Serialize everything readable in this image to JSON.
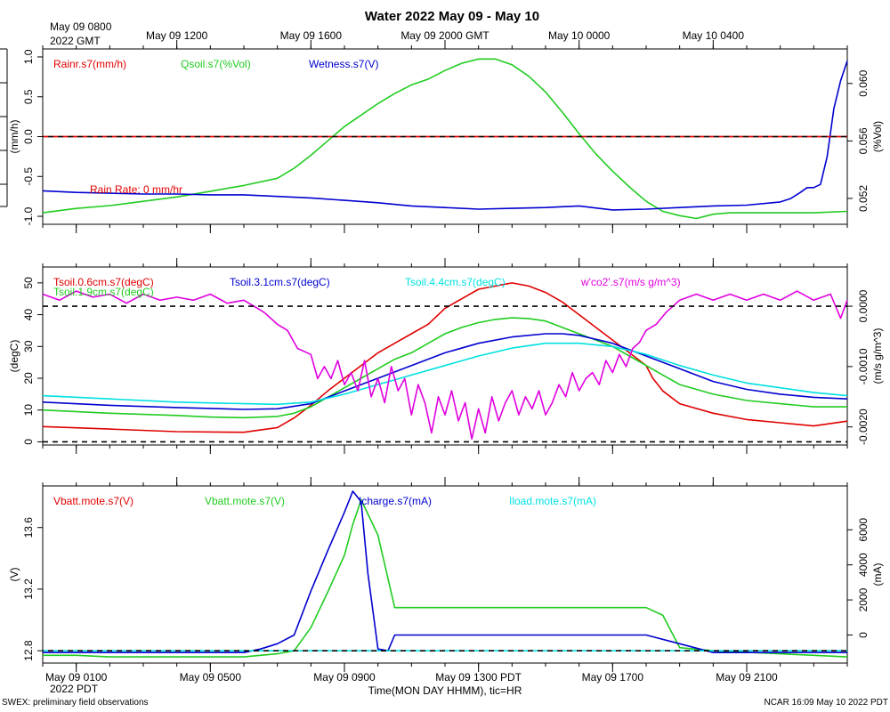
{
  "title": "Water 2022 May 09 - May 10",
  "x_range_hours": [
    0,
    24
  ],
  "top_axis": {
    "corner": [
      "May 09 0800",
      "2022 GMT"
    ],
    "ticks": [
      {
        "h": 4,
        "label": "May 09 1200"
      },
      {
        "h": 8,
        "label": "May 09 1600"
      },
      {
        "h": 12,
        "label": "May 09 2000 GMT"
      },
      {
        "h": 16,
        "label": "May 10 0000"
      },
      {
        "h": 20,
        "label": "May 10 0400"
      }
    ]
  },
  "bottom_axis": {
    "ticks": [
      {
        "h": 1,
        "label": "May 09 0100"
      },
      {
        "h": 5,
        "label": "May 09 0500"
      },
      {
        "h": 9,
        "label": "May 09 0900"
      },
      {
        "h": 13,
        "label": "May 09 1300 PDT"
      },
      {
        "h": 17,
        "label": "May 09 1700"
      },
      {
        "h": 21,
        "label": "May 09 2100"
      }
    ],
    "year_label": "2022 PDT",
    "xlabel": "Time(MON DAY HHMM), tic=HR"
  },
  "footer": {
    "left": "SWEX: preliminary field observations",
    "right": "NCAR 16:09 May 10 2022 PDT"
  },
  "colors": {
    "red": "#e00000",
    "green": "#20cc20",
    "blue": "#0000d0",
    "cyan": "#00e0e0",
    "magenta": "#e000e0"
  },
  "chart_data": [
    {
      "type": "line",
      "panel": "water",
      "ylabel_left": "(mm/h)",
      "ylabel_right": "(%Vol)",
      "ylim_left": [
        -1.1,
        1.1
      ],
      "yticks_left": [
        -1.0,
        -0.5,
        0.0,
        0.5,
        1.0
      ],
      "ytick_labels_left": [
        "-1.0",
        "-0.5",
        "0.0",
        "0.5",
        "1.0"
      ],
      "ylim_right": [
        0.0502,
        0.0624
      ],
      "yticks_right": [
        0.052,
        0.056,
        0.06
      ],
      "ytick_labels_right": [
        "0.052",
        "0.056",
        "0.060"
      ],
      "ref_lines": [
        {
          "value": 0.0,
          "axis": "left",
          "colors": [
            "#e00000",
            "#000000"
          ]
        }
      ],
      "annotation": "Rain Rate: 0 mm/hr",
      "series": [
        {
          "name": "Rainr.s7(mm/h)",
          "color": "#e00000",
          "axis": "left",
          "x": [
            0,
            24
          ],
          "y": [
            0,
            0
          ]
        },
        {
          "name": "Qsoil.s7(%Vol)",
          "color": "#20cc20",
          "axis": "right",
          "x": [
            0,
            1,
            2,
            3,
            4,
            5,
            6,
            7,
            7.5,
            8,
            8.5,
            9,
            9.5,
            10,
            10.5,
            11,
            11.5,
            12,
            12.5,
            13,
            13.5,
            14,
            14.5,
            15,
            15.5,
            16,
            16.5,
            17,
            17.5,
            18,
            18.5,
            19,
            19.5,
            20,
            20.5,
            21,
            22,
            23,
            24
          ],
          "y": [
            0.051,
            0.0513,
            0.0515,
            0.0518,
            0.0521,
            0.0525,
            0.0529,
            0.0534,
            0.0541,
            0.055,
            0.056,
            0.057,
            0.0578,
            0.0586,
            0.0593,
            0.0599,
            0.0603,
            0.0609,
            0.0614,
            0.0617,
            0.0617,
            0.0613,
            0.0605,
            0.0594,
            0.058,
            0.0565,
            0.0551,
            0.0539,
            0.0528,
            0.0518,
            0.0511,
            0.0508,
            0.0506,
            0.0509,
            0.051,
            0.051,
            0.051,
            0.051,
            0.0511
          ]
        },
        {
          "name": "Wetness.s7(V)",
          "color": "#0000d0",
          "axis": "left",
          "x": [
            0,
            1,
            2,
            3,
            4,
            5,
            6,
            7,
            8,
            9,
            10,
            11,
            12,
            13,
            14,
            15,
            16,
            17,
            18,
            19,
            20,
            21,
            22,
            22.3,
            22.6,
            22.8,
            23,
            23.2,
            23.4,
            23.6,
            23.8,
            24
          ],
          "y": [
            -0.68,
            -0.7,
            -0.71,
            -0.72,
            -0.72,
            -0.73,
            -0.73,
            -0.75,
            -0.77,
            -0.8,
            -0.83,
            -0.87,
            -0.89,
            -0.91,
            -0.9,
            -0.89,
            -0.87,
            -0.92,
            -0.91,
            -0.89,
            -0.87,
            -0.86,
            -0.82,
            -0.78,
            -0.7,
            -0.64,
            -0.64,
            -0.6,
            -0.25,
            0.35,
            0.7,
            0.95
          ]
        }
      ],
      "legend": [
        "Rainr.s7(mm/h)",
        "Qsoil.s7(%Vol)",
        "Wetness.s7(V)"
      ]
    },
    {
      "type": "line",
      "panel": "soil",
      "ylabel_left": "(degC)",
      "ylabel_right": "(m/s g/m^3)",
      "ylim_left": [
        -1,
        55
      ],
      "yticks_left": [
        0,
        10,
        20,
        30,
        40,
        50
      ],
      "ytick_labels_left": [
        "0",
        "10",
        "20",
        "30",
        "40",
        "50"
      ],
      "ylim_right": [
        -0.0023,
        0.00065
      ],
      "yticks_right": [
        -0.002,
        -0.001,
        0.0
      ],
      "ytick_labels_right": [
        "-0.0020",
        "-0.0010",
        "0.0000"
      ],
      "ref_lines": [
        {
          "value": 0.0,
          "axis": "left",
          "colors": [
            "#000000"
          ]
        },
        {
          "value": 0.0,
          "axis": "right",
          "colors": [
            "#000000"
          ]
        }
      ],
      "series": [
        {
          "name": "Tsoil.0.6cm.s7(degC)",
          "color": "#e00000",
          "axis": "left",
          "x": [
            0,
            2,
            4,
            6,
            7,
            7.5,
            8,
            8.5,
            9,
            9.5,
            10,
            10.5,
            11,
            11.5,
            12,
            12.5,
            13,
            13.5,
            14,
            14.5,
            15,
            15.5,
            16,
            16.5,
            17,
            17.5,
            18,
            18.2,
            18.5,
            19,
            20,
            21,
            22,
            23,
            24
          ],
          "y": [
            4.8,
            4.0,
            3.2,
            3.0,
            4.5,
            7.5,
            11.5,
            16,
            20,
            24,
            28,
            31,
            34,
            37,
            42,
            45,
            48,
            49,
            50,
            49,
            47,
            44,
            40,
            36,
            32,
            28,
            24,
            20,
            16,
            12,
            9,
            7,
            6,
            5,
            6.5
          ]
        },
        {
          "name": "Tsoil.1.9cm.s7(degC)",
          "color": "#20cc20",
          "axis": "left",
          "x": [
            0,
            2,
            4,
            5,
            6,
            7,
            7.5,
            8,
            8.5,
            9,
            9.5,
            10,
            10.5,
            11,
            11.5,
            12,
            12.5,
            13,
            13.5,
            14,
            14.5,
            15,
            15.5,
            16,
            16.5,
            17,
            17.5,
            18,
            18.5,
            19,
            20,
            21,
            22,
            23,
            24
          ],
          "y": [
            10,
            9,
            8.3,
            7.8,
            7.6,
            8,
            9,
            11,
            14,
            17,
            20,
            23,
            26,
            28,
            31,
            34,
            36,
            37.5,
            38.5,
            39,
            38.8,
            38,
            36,
            34,
            32,
            30,
            27,
            24,
            21,
            18,
            15,
            13,
            12,
            11,
            11
          ]
        },
        {
          "name": "Tsoil.3.1cm.s7(degC)",
          "color": "#0000d0",
          "axis": "left",
          "x": [
            0,
            2,
            4,
            6,
            7,
            8,
            9,
            10,
            11,
            12,
            13,
            14,
            15,
            15.5,
            16,
            17,
            18,
            19,
            20,
            21,
            22,
            23,
            24
          ],
          "y": [
            12.5,
            11.5,
            10.8,
            10.2,
            10.4,
            12,
            16,
            20,
            24,
            28,
            31,
            33,
            34,
            34,
            33.5,
            31,
            27,
            23,
            19,
            16.5,
            15,
            14,
            13.5
          ]
        },
        {
          "name": "Tsoil.4.4cm.s7(degC)",
          "color": "#00e0e0",
          "axis": "left",
          "x": [
            0,
            2,
            4,
            6,
            7,
            8,
            9,
            10,
            11,
            12,
            13,
            14,
            15,
            16,
            17,
            18,
            19,
            20,
            21,
            22,
            23,
            24
          ],
          "y": [
            14.5,
            13.5,
            12.5,
            12,
            11.8,
            12.5,
            15,
            18,
            21,
            24,
            27,
            29.5,
            31,
            31,
            30,
            27.5,
            24,
            21,
            18.5,
            17,
            15.5,
            14.5
          ]
        },
        {
          "name": "w'co2'.s7(m/s g/m^3)",
          "color": "#e000e0",
          "axis": "right",
          "x": [
            0,
            0.5,
            1,
            1.5,
            2,
            2.5,
            3,
            3.5,
            4,
            4.5,
            5,
            5.5,
            6,
            6.3,
            6.6,
            7,
            7.3,
            7.6,
            8,
            8.2,
            8.4,
            8.6,
            8.8,
            9,
            9.2,
            9.4,
            9.6,
            9.8,
            10,
            10.2,
            10.4,
            10.6,
            10.8,
            11,
            11.2,
            11.4,
            11.6,
            11.8,
            12,
            12.2,
            12.4,
            12.6,
            12.8,
            13,
            13.2,
            13.4,
            13.6,
            13.8,
            14,
            14.2,
            14.4,
            14.6,
            14.8,
            15,
            15.2,
            15.4,
            15.6,
            15.8,
            16,
            16.2,
            16.4,
            16.6,
            16.8,
            17,
            17.2,
            17.4,
            17.6,
            17.8,
            18,
            18.3,
            18.6,
            19,
            19.5,
            20,
            20.5,
            21,
            21.5,
            22,
            22.5,
            23,
            23.5,
            23.8,
            24
          ],
          "y": [
            0.0002,
            0.0001,
            0.00025,
            0.00015,
            0.0002,
            5e-05,
            0.0002,
            0.0001,
            0.00015,
            0.0001,
            0.0002,
            5e-05,
            0.0001,
            0.0,
            -0.0001,
            -0.0003,
            -0.0004,
            -0.0007,
            -0.0008,
            -0.0012,
            -0.001,
            -0.0012,
            -0.0009,
            -0.0013,
            -0.0011,
            -0.0014,
            -0.0009,
            -0.0015,
            -0.0012,
            -0.0016,
            -0.001,
            -0.0014,
            -0.0012,
            -0.0018,
            -0.0013,
            -0.0016,
            -0.0021,
            -0.0015,
            -0.0018,
            -0.0014,
            -0.0019,
            -0.0016,
            -0.0022,
            -0.0017,
            -0.0021,
            -0.0015,
            -0.0019,
            -0.0016,
            -0.0014,
            -0.0018,
            -0.0015,
            -0.0017,
            -0.0014,
            -0.0018,
            -0.0016,
            -0.0013,
            -0.0015,
            -0.0011,
            -0.0014,
            -0.0012,
            -0.0011,
            -0.0013,
            -0.0009,
            -0.0011,
            -0.0008,
            -0.001,
            -0.0007,
            -0.0006,
            -0.0004,
            -0.0003,
            -0.0001,
            0.0001,
            0.0002,
            0.0001,
            0.0002,
            0.0001,
            0.0002,
            0.0001,
            0.00025,
            0.0001,
            0.0002,
            -0.0002,
            0.0001
          ]
        }
      ],
      "legend": [
        "Tsoil.0.6cm.s7(degC)",
        "Tsoil.1.9cm.s7(degC)",
        "Tsoil.3.1cm.s7(degC)",
        "Tsoil.4.4cm.s7(degC)",
        "w'co2'.s7(m/s g/m^3)"
      ]
    },
    {
      "type": "line",
      "panel": "power",
      "ylabel_left": "(V)",
      "ylabel_right": "(mA)",
      "ylim_left": [
        12.72,
        13.87
      ],
      "yticks_left": [
        12.8,
        13.2,
        13.6
      ],
      "ytick_labels_left": [
        "12.8",
        "13.2",
        "13.6"
      ],
      "ylim_right": [
        -1600,
        8500
      ],
      "yticks_right": [
        0,
        2000,
        4000,
        6000
      ],
      "ytick_labels_right": [
        "0",
        "2000",
        "4000",
        "6000"
      ],
      "ref_lines": [
        {
          "value": 12.8,
          "axis": "left",
          "colors": [
            "#00e0e0",
            "#000000"
          ]
        }
      ],
      "series": [
        {
          "name": "Vbatt.mote.s7(V)",
          "color": "#e00000",
          "axis": "left",
          "x": [],
          "y": []
        },
        {
          "name": "Vbatt.mote.s7(V)",
          "color": "#20cc20",
          "axis": "left",
          "x": [
            0,
            1,
            2,
            3,
            4,
            5,
            6,
            6.5,
            7,
            7.5,
            8,
            8.5,
            9,
            9.25,
            9.5,
            10,
            10.5,
            11,
            12,
            13,
            14,
            15,
            16,
            17,
            17.5,
            18,
            18.5,
            19,
            20,
            21,
            22,
            23,
            24
          ],
          "y": [
            12.77,
            12.77,
            12.76,
            12.76,
            12.76,
            12.76,
            12.76,
            12.77,
            12.78,
            12.8,
            12.95,
            13.18,
            13.42,
            13.62,
            13.78,
            13.55,
            13.08,
            13.08,
            13.08,
            13.08,
            13.08,
            13.08,
            13.08,
            13.08,
            13.08,
            13.08,
            13.03,
            12.82,
            12.8,
            12.79,
            12.78,
            12.77,
            12.76
          ]
        },
        {
          "name": "Icharge.s7(mA)",
          "color": "#0000d0",
          "axis": "right",
          "x": [
            0,
            2,
            4,
            6,
            6.5,
            7,
            7.5,
            8,
            8.5,
            9,
            9.25,
            9.5,
            9.7,
            10,
            10.3,
            10.5,
            11,
            12,
            13,
            14,
            15,
            16,
            17,
            18,
            19,
            20,
            21,
            22,
            23,
            24
          ],
          "y": [
            -1000,
            -1000,
            -1000,
            -1000,
            -800,
            -500,
            0,
            2500,
            4800,
            7000,
            8200,
            7600,
            3500,
            -800,
            -900,
            0,
            0,
            0,
            0,
            0,
            0,
            0,
            0,
            0,
            -500,
            -1000,
            -1000,
            -1000,
            -1000,
            -1000
          ]
        },
        {
          "name": "Iload.mote.s7(mA)",
          "color": "#00e0e0",
          "axis": "right",
          "x": [],
          "y": []
        }
      ],
      "legend": [
        "Vbatt.mote.s7(V)",
        "Vbatt.mote.s7(V)",
        "Icharge.s7(mA)",
        "Iload.mote.s7(mA)"
      ]
    }
  ]
}
